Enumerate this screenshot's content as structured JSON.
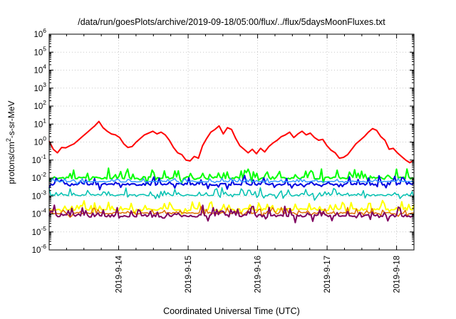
{
  "chart_data": {
    "type": "line",
    "title": "/data/run/goesPlots/archive/2019-09-18/05:00/flux/../flux/5daysMoonFluxes.txt",
    "xlabel": "Coordinated Universal Time (UTC)",
    "ylabel": {
      "base": "protons/cm",
      "sup": "2",
      "rest": "-s-sr-MeV"
    },
    "y_scale": "log",
    "ylim_exp": [
      -6,
      6
    ],
    "y_tick_base": "10",
    "y_tick_exponents": [
      "6",
      "5",
      "4",
      "3",
      "2",
      "1",
      "0",
      "-1",
      "-2",
      "-3",
      "-4",
      "-5",
      "-6"
    ],
    "x_range_days": [
      "2019-09-13 00:00",
      "2019-09-18 06:00"
    ],
    "x_ticks": [
      "2019-9-14",
      "2019-9-15",
      "2019-9-16",
      "2019-9-17",
      "2019-9-18"
    ],
    "grid": true,
    "series": [
      {
        "color": "#ff0000",
        "width": 2,
        "log10_values": [
          0.05,
          -0.4,
          -0.6,
          -0.3,
          -0.32,
          -0.2,
          -0.1,
          0.1,
          0.3,
          0.5,
          0.7,
          0.9,
          1.15,
          0.8,
          0.6,
          0.45,
          0.4,
          0.25,
          -0.1,
          -0.3,
          -0.25,
          0.0,
          0.2,
          0.4,
          0.5,
          0.6,
          0.45,
          0.55,
          0.4,
          0.1,
          -0.3,
          -0.6,
          -0.7,
          -1.0,
          -1.05,
          -0.8,
          -0.9,
          -0.2,
          0.2,
          0.55,
          0.7,
          0.9,
          0.45,
          0.8,
          0.7,
          0.2,
          -0.2,
          -0.4,
          -0.6,
          -0.4,
          -0.65,
          -0.35,
          -0.55,
          -0.25,
          -0.05,
          0.1,
          0.3,
          0.4,
          0.55,
          0.25,
          0.45,
          0.6,
          0.4,
          0.5,
          0.25,
          0.1,
          0.15,
          -0.2,
          -0.45,
          -0.6,
          -0.9,
          -0.85,
          -0.7,
          -0.4,
          -0.1,
          0.1,
          0.3,
          0.55,
          0.75,
          0.65,
          0.3,
          0.1,
          -0.4,
          -0.35,
          -0.6,
          -0.8,
          -1.0,
          -1.15,
          -1.0
        ]
      },
      {
        "color": "#00ff00",
        "width": 2,
        "base": -2.0,
        "amp": 0.55,
        "seed": 11
      },
      {
        "color": "#0000e0",
        "width": 2,
        "base": -2.35,
        "amp": 0.45,
        "seed": 23
      },
      {
        "color": "#3399ff",
        "width": 1.5,
        "base": -2.2,
        "amp": 0.2,
        "seed": 37
      },
      {
        "color": "#00c0b0",
        "width": 1.5,
        "base": -2.95,
        "amp": 0.4,
        "seed": 41
      },
      {
        "color": "#ffff00",
        "width": 2,
        "base": -3.75,
        "amp": 0.45,
        "seed": 53
      },
      {
        "color": "#e07000",
        "width": 1.5,
        "base": -3.95,
        "amp": 0.35,
        "seed": 67
      },
      {
        "color": "#800060",
        "width": 2,
        "base": -4.1,
        "amp": 0.55,
        "seed": 79
      }
    ]
  }
}
